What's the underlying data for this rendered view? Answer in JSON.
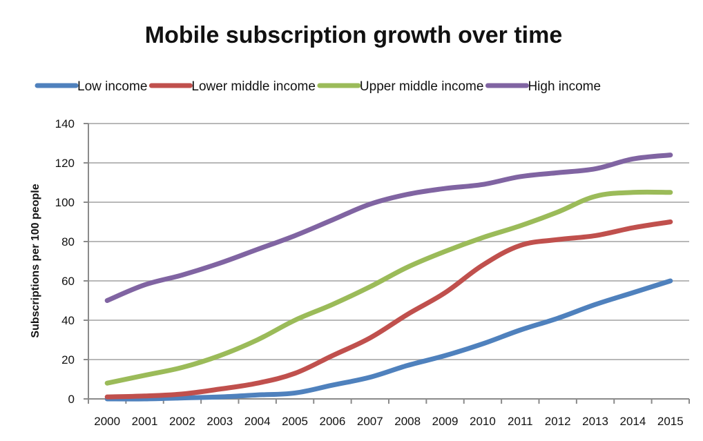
{
  "chart_data": {
    "type": "line",
    "title": "Mobile subscription growth over time",
    "xlabel": "",
    "ylabel": "Subscriptions per 100 people",
    "ylim": [
      0,
      140
    ],
    "yticks": [
      0,
      20,
      40,
      60,
      80,
      100,
      120,
      140
    ],
    "grid": true,
    "legend_position": "top",
    "categories": [
      "2000",
      "2001",
      "2002",
      "2003",
      "2004",
      "2005",
      "2006",
      "2007",
      "2008",
      "2009",
      "2010",
      "2011",
      "2012",
      "2013",
      "2014",
      "2015"
    ],
    "series": [
      {
        "name": "Low income",
        "color": "#4f81bd",
        "values": [
          0,
          0,
          0.5,
          1,
          2,
          3,
          7,
          11,
          17,
          22,
          28,
          35,
          41,
          48,
          54,
          60
        ]
      },
      {
        "name": "Lower middle income",
        "color": "#c0504d",
        "values": [
          1,
          1.5,
          2.5,
          5,
          8,
          13,
          22,
          31,
          43,
          54,
          68,
          78,
          81,
          83,
          87,
          90
        ]
      },
      {
        "name": "Upper middle income",
        "color": "#9bbb59",
        "values": [
          8,
          12,
          16,
          22,
          30,
          40,
          48,
          57,
          67,
          75,
          82,
          88,
          95,
          103,
          105,
          105
        ]
      },
      {
        "name": "High income",
        "color": "#8064a2",
        "values": [
          50,
          58,
          63,
          69,
          76,
          83,
          91,
          99,
          104,
          107,
          109,
          113,
          115,
          117,
          122,
          124
        ]
      }
    ]
  }
}
